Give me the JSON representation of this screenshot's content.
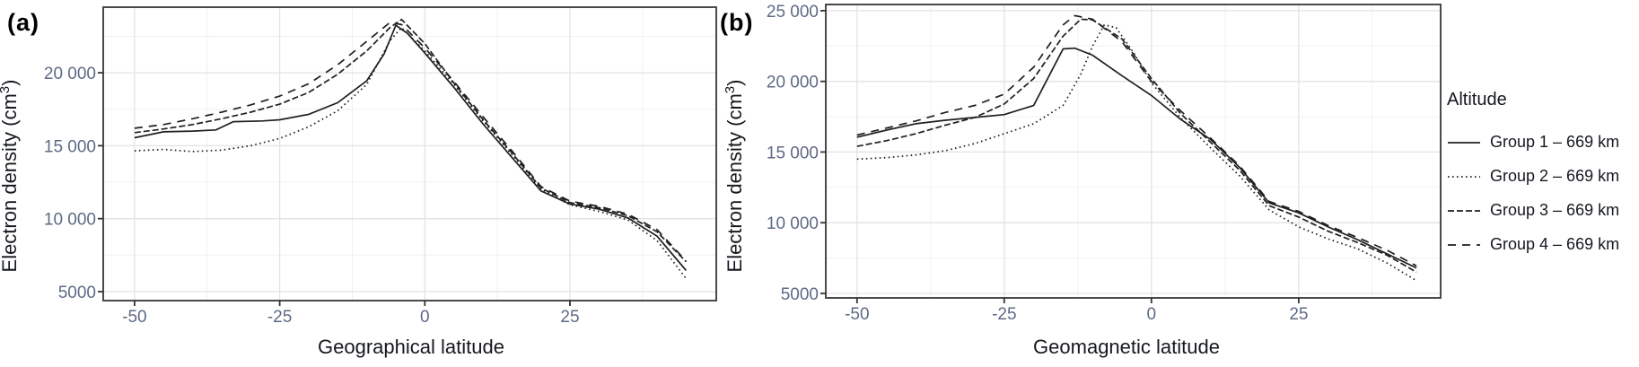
{
  "figure": {
    "panel_a_tag": "(a)",
    "panel_b_tag": "(b)"
  },
  "legend": {
    "title": "Altitude",
    "entries": [
      {
        "label": "Group 1 – 669 km",
        "dash": "none"
      },
      {
        "label": "Group 2 – 669 km",
        "dash": "1.6 3.4"
      },
      {
        "label": "Group 3 – 669 km",
        "dash": "7 3"
      },
      {
        "label": "Group 4 – 669 km",
        "dash": "9 7"
      }
    ]
  },
  "chart_data": [
    {
      "type": "line",
      "panel_label": "(a)",
      "xlabel": "Geographical latitude",
      "ylabel": "Electron density (cm³)",
      "legend_title": "Altitude",
      "legend_position": "right",
      "grid": true,
      "xlim": [
        -55.4,
        50.2
      ],
      "ylim": [
        4385,
        24495
      ],
      "xticks": [
        -50,
        -25,
        0,
        25
      ],
      "xtick_labels": [
        "-50",
        "-25",
        "0",
        "25"
      ],
      "yticks": [
        5000,
        10000,
        15000,
        20000
      ],
      "ytick_labels": [
        "5000",
        "10 000",
        "15 000",
        "20 000"
      ],
      "xminor": [
        -37.5,
        -12.5,
        12.5,
        37.5
      ],
      "yminor": [
        7500,
        12500,
        17500,
        22500
      ],
      "series": [
        {
          "name": "Group 1 – 669 km",
          "linetype": "solid",
          "dash": "none",
          "points": [
            [
              -50,
              15550
            ],
            [
              -45,
              15950
            ],
            [
              -40,
              16000
            ],
            [
              -36,
              16080
            ],
            [
              -33,
              16650
            ],
            [
              -28,
              16700
            ],
            [
              -25,
              16780
            ],
            [
              -20,
              17150
            ],
            [
              -15,
              17950
            ],
            [
              -10,
              19450
            ],
            [
              -7,
              21300
            ],
            [
              -5,
              23250
            ],
            [
              -3,
              22700
            ],
            [
              0,
              21350
            ],
            [
              5,
              19000
            ],
            [
              10,
              16500
            ],
            [
              15,
              14200
            ],
            [
              20,
              11900
            ],
            [
              25,
              11000
            ],
            [
              30,
              10650
            ],
            [
              35,
              10050
            ],
            [
              40,
              8800
            ],
            [
              45,
              6450
            ]
          ]
        },
        {
          "name": "Group 2 – 669 km",
          "linetype": "dotted",
          "dash": "1.6 3.4",
          "points": [
            [
              -50,
              14650
            ],
            [
              -45,
              14750
            ],
            [
              -40,
              14600
            ],
            [
              -35,
              14700
            ],
            [
              -30,
              15000
            ],
            [
              -25,
              15500
            ],
            [
              -20,
              16300
            ],
            [
              -15,
              17400
            ],
            [
              -10,
              19200
            ],
            [
              -6,
              22200
            ],
            [
              -4,
              23100
            ],
            [
              0,
              21500
            ],
            [
              5,
              19200
            ],
            [
              10,
              16700
            ],
            [
              15,
              14400
            ],
            [
              20,
              12000
            ],
            [
              25,
              10950
            ],
            [
              30,
              10500
            ],
            [
              35,
              9900
            ],
            [
              40,
              8500
            ],
            [
              45,
              5900
            ]
          ]
        },
        {
          "name": "Group 3 – 669 km",
          "linetype": "dashed",
          "dash": "7 3",
          "points": [
            [
              -50,
              15900
            ],
            [
              -45,
              16150
            ],
            [
              -40,
              16450
            ],
            [
              -35,
              16850
            ],
            [
              -30,
              17300
            ],
            [
              -25,
              17850
            ],
            [
              -20,
              18650
            ],
            [
              -15,
              19900
            ],
            [
              -10,
              21500
            ],
            [
              -6,
              23100
            ],
            [
              -4,
              23650
            ],
            [
              0,
              22000
            ],
            [
              5,
              19300
            ],
            [
              10,
              16800
            ],
            [
              15,
              14500
            ],
            [
              20,
              12100
            ],
            [
              25,
              11100
            ],
            [
              30,
              10750
            ],
            [
              35,
              10200
            ],
            [
              40,
              9100
            ],
            [
              45,
              7050
            ]
          ]
        },
        {
          "name": "Group 4 – 669 km",
          "linetype": "longdash",
          "dash": "9 7",
          "points": [
            [
              -50,
              16200
            ],
            [
              -45,
              16450
            ],
            [
              -40,
              16850
            ],
            [
              -35,
              17300
            ],
            [
              -30,
              17800
            ],
            [
              -25,
              18400
            ],
            [
              -20,
              19250
            ],
            [
              -15,
              20550
            ],
            [
              -10,
              22150
            ],
            [
              -6,
              23450
            ],
            [
              -4,
              23300
            ],
            [
              0,
              21700
            ],
            [
              5,
              19400
            ],
            [
              10,
              17000
            ],
            [
              15,
              14650
            ],
            [
              20,
              12200
            ],
            [
              25,
              11200
            ],
            [
              30,
              10850
            ],
            [
              35,
              10300
            ],
            [
              40,
              9250
            ],
            [
              45,
              7100
            ]
          ]
        }
      ]
    },
    {
      "type": "line",
      "panel_label": "(b)",
      "xlabel": "Geomagnetic latitude",
      "ylabel": "Electron density (cm³)",
      "legend_title": "Altitude",
      "legend_position": "right",
      "grid": true,
      "xlim": [
        -55.3,
        49.1
      ],
      "ylim": [
        4680,
        25440
      ],
      "xticks": [
        -50,
        -25,
        0,
        25
      ],
      "xtick_labels": [
        "-50",
        "-25",
        "0",
        "25"
      ],
      "yticks": [
        5000,
        10000,
        15000,
        20000,
        25000
      ],
      "ytick_labels": [
        "5000",
        "10 000",
        "15 000",
        "20 000",
        "25 000"
      ],
      "xminor": [
        -37.5,
        -12.5,
        12.5,
        37.5
      ],
      "yminor": [
        7500,
        12500,
        17500,
        22500
      ],
      "series": [
        {
          "name": "Group 1 – 669 km",
          "linetype": "solid",
          "dash": "none",
          "points": [
            [
              -50,
              16050
            ],
            [
              -45,
              16550
            ],
            [
              -40,
              17000
            ],
            [
              -35,
              17250
            ],
            [
              -30,
              17450
            ],
            [
              -25,
              17650
            ],
            [
              -20,
              18300
            ],
            [
              -15,
              22300
            ],
            [
              -13,
              22350
            ],
            [
              -10,
              21850
            ],
            [
              -5,
              20400
            ],
            [
              0,
              19000
            ],
            [
              5,
              17300
            ],
            [
              10,
              15900
            ],
            [
              15,
              13900
            ],
            [
              20,
              11400
            ],
            [
              25,
              10700
            ],
            [
              30,
              9700
            ],
            [
              35,
              8800
            ],
            [
              40,
              7800
            ],
            [
              45,
              6800
            ]
          ]
        },
        {
          "name": "Group 2 – 669 km",
          "linetype": "dotted",
          "dash": "1.6 3.4",
          "points": [
            [
              -50,
              14500
            ],
            [
              -45,
              14600
            ],
            [
              -40,
              14800
            ],
            [
              -35,
              15100
            ],
            [
              -30,
              15600
            ],
            [
              -25,
              16300
            ],
            [
              -20,
              17000
            ],
            [
              -15,
              18300
            ],
            [
              -12,
              20500
            ],
            [
              -10,
              22500
            ],
            [
              -8,
              24000
            ],
            [
              -6,
              23800
            ],
            [
              -3,
              22000
            ],
            [
              0,
              19900
            ],
            [
              5,
              17400
            ],
            [
              10,
              15300
            ],
            [
              15,
              13300
            ],
            [
              20,
              10900
            ],
            [
              25,
              9700
            ],
            [
              30,
              8850
            ],
            [
              35,
              8150
            ],
            [
              40,
              7150
            ],
            [
              45,
              5900
            ]
          ]
        },
        {
          "name": "Group 3 – 669 km",
          "linetype": "dashed",
          "dash": "7 3",
          "points": [
            [
              -50,
              15400
            ],
            [
              -45,
              15800
            ],
            [
              -40,
              16300
            ],
            [
              -35,
              16900
            ],
            [
              -30,
              17450
            ],
            [
              -25,
              18400
            ],
            [
              -20,
              20200
            ],
            [
              -15,
              23200
            ],
            [
              -12,
              24400
            ],
            [
              -10,
              24350
            ],
            [
              -5,
              23000
            ],
            [
              0,
              20200
            ],
            [
              5,
              17700
            ],
            [
              10,
              15700
            ],
            [
              15,
              13700
            ],
            [
              20,
              11200
            ],
            [
              25,
              10400
            ],
            [
              30,
              9400
            ],
            [
              35,
              8600
            ],
            [
              40,
              7700
            ],
            [
              45,
              6500
            ]
          ]
        },
        {
          "name": "Group 4 – 669 km",
          "linetype": "longdash",
          "dash": "9 7",
          "points": [
            [
              -50,
              16200
            ],
            [
              -45,
              16700
            ],
            [
              -40,
              17200
            ],
            [
              -35,
              17800
            ],
            [
              -30,
              18300
            ],
            [
              -25,
              19100
            ],
            [
              -20,
              21000
            ],
            [
              -15,
              24000
            ],
            [
              -13,
              24650
            ],
            [
              -10,
              24400
            ],
            [
              -5,
              22800
            ],
            [
              0,
              20000
            ],
            [
              5,
              17900
            ],
            [
              10,
              16000
            ],
            [
              15,
              14000
            ],
            [
              20,
              11500
            ],
            [
              25,
              10800
            ],
            [
              30,
              9800
            ],
            [
              35,
              8950
            ],
            [
              40,
              8050
            ],
            [
              45,
              6950
            ]
          ]
        }
      ]
    }
  ]
}
